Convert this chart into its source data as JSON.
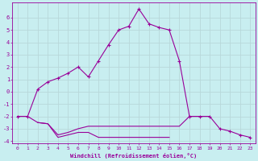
{
  "xlabel": "Windchill (Refroidissement éolien,°C)",
  "background_color": "#c8eef0",
  "line_color": "#990099",
  "grid_color": "#aadddd",
  "x_hours": [
    0,
    1,
    2,
    3,
    4,
    5,
    6,
    7,
    8,
    9,
    10,
    11,
    12,
    13,
    14,
    15,
    16,
    17,
    18,
    19,
    20,
    21,
    22,
    23
  ],
  "main_line": [
    -2.0,
    -2.0,
    0.2,
    0.8,
    1.1,
    1.5,
    2.0,
    1.2,
    2.5,
    3.8,
    5.0,
    5.3,
    6.7,
    5.5,
    5.2,
    5.0,
    2.5,
    -2.0,
    -2.0,
    -2.0,
    -3.0,
    -3.2,
    -3.5,
    -3.7
  ],
  "lower_line1": [
    -2.0,
    -2.0,
    -2.5,
    -2.6,
    -3.5,
    -3.3,
    -3.0,
    -2.8,
    -2.8,
    -2.8,
    -2.8,
    -2.8,
    -2.8,
    -2.8,
    -2.8,
    -2.8,
    -2.8,
    -2.0,
    -2.0,
    -2.0,
    null,
    null,
    null,
    null
  ],
  "lower_line2": [
    null,
    null,
    -2.5,
    -2.6,
    -3.7,
    -3.5,
    -3.3,
    -3.3,
    -3.7,
    -3.7,
    -3.7,
    -3.7,
    -3.7,
    -3.7,
    -3.7,
    -3.7,
    null,
    null,
    null,
    null,
    null,
    null,
    null,
    null
  ],
  "ylim": [
    -4.2,
    7.2
  ],
  "yticks": [
    -4,
    -3,
    -2,
    -1,
    0,
    1,
    2,
    3,
    4,
    5,
    6
  ],
  "xticks": [
    0,
    1,
    2,
    3,
    4,
    5,
    6,
    7,
    8,
    9,
    10,
    11,
    12,
    13,
    14,
    15,
    16,
    17,
    18,
    19,
    20,
    21,
    22,
    23
  ]
}
